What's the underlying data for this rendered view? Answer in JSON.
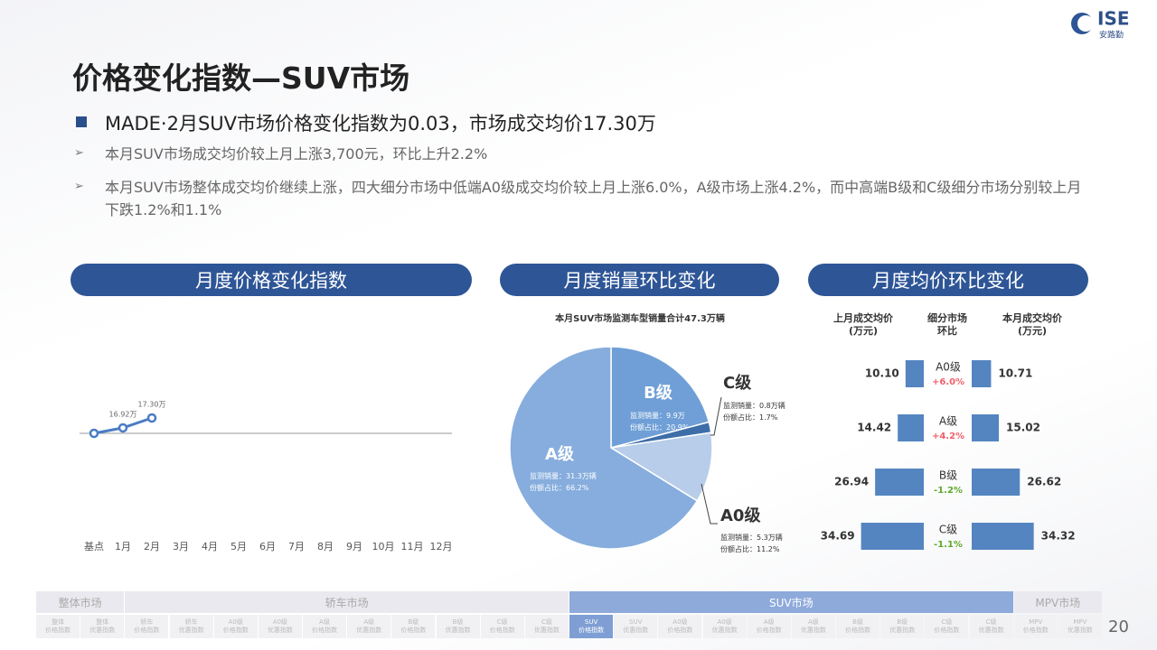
{
  "logo": {
    "brand": "ISE",
    "name": "安路勤"
  },
  "title": "价格变化指数—SUV市场",
  "bullet": "MADE·2月SUV市场价格变化指数为0.03，市场成交均价17.30万",
  "sub_bullets": [
    "本月SUV市场成交均价较上月上涨3,700元，环比上升2.2%",
    "本月SUV市场整体成交均价继续上涨，四大细分市场中低端A0级成交均价较上月上涨6.0%，A级市场上涨4.2%，而中高端B级和C级细分市场分别较上月下跌1.2%和1.1%"
  ],
  "panels": [
    "月度价格变化指数",
    "月度销量环比变化",
    "月度均价环比变化"
  ],
  "chart_data": [
    {
      "type": "line",
      "categories": [
        "基点",
        "1月",
        "2月",
        "3月",
        "4月",
        "5月",
        "6月",
        "7月",
        "8月",
        "9月",
        "10月",
        "11月",
        "12月"
      ],
      "values": [
        16.71,
        16.92,
        17.3,
        null,
        null,
        null,
        null,
        null,
        null,
        null,
        null,
        null,
        null
      ],
      "value_labels": [
        null,
        "16.92万",
        "17.30万",
        null,
        null,
        null,
        null,
        null,
        null,
        null,
        null,
        null,
        null
      ],
      "color": "#4a7cc4"
    },
    {
      "type": "pie",
      "title": "本月SUV市场监测车型销量合计47.3万辆",
      "categories": [
        "B级",
        "C级",
        "A0级",
        "A级"
      ],
      "values": [
        20.9,
        1.7,
        11.2,
        66.2
      ],
      "value_labels": [
        "20.9%",
        "1.7%",
        "11.2%",
        "66.2%"
      ],
      "colors": [
        "#6f9fd6",
        "#3e6ea8",
        "#b8cde9",
        "#86addd"
      ],
      "sales_prefix": "监测销量：",
      "share_prefix": "份额占比：",
      "sales_labels": [
        "9.9万",
        "0.8万辆",
        "5.3万辆",
        "31.3万辆"
      ]
    },
    {
      "type": "butterfly",
      "categories": [
        "A0级",
        "A级",
        "B级",
        "C级"
      ],
      "series": [
        {
          "name": "上月成交均价\n(万元)",
          "color": "#5485c0",
          "values": [
            10.1,
            14.42,
            26.94,
            34.69
          ],
          "value_labels": [
            "10.10",
            "14.42",
            "26.94",
            "34.69"
          ]
        },
        {
          "name": "本月成交均价\n(万元)",
          "color": "#5485c0",
          "values": [
            10.71,
            15.02,
            26.62,
            34.32
          ],
          "value_labels": [
            "10.71",
            "15.02",
            "26.62",
            "34.32"
          ]
        }
      ],
      "change": {
        "name": "细分市场\n环比",
        "values": [
          6.0,
          4.2,
          -1.2,
          -1.1
        ],
        "value_labels": [
          "+6.0%",
          "+4.2%",
          "-1.2%",
          "-1.1%"
        ],
        "up_color": "#f0606a",
        "down_color": "#5fa82a"
      }
    }
  ],
  "nav": [
    {
      "label": "整体市场",
      "items": [
        "整体\n价格指数",
        "整体\n优惠指数"
      ]
    },
    {
      "label": "轿车市场",
      "items": [
        "轿车\n价格指数",
        "轿车\n优惠指数",
        "A0级\n价格指数",
        "A0级\n优惠指数",
        "A级\n价格指数",
        "A级\n优惠指数",
        "B级\n价格指数",
        "B级\n优惠指数",
        "C级\n价格指数",
        "C级\n优惠指数"
      ]
    },
    {
      "label": "SUV市场",
      "active": true,
      "active_item": 0,
      "items": [
        "SUV\n价格指数",
        "SUV\n优惠指数",
        "A0级\n价格指数",
        "A0级\n优惠指数",
        "A级\n价格指数",
        "A级\n优惠指数",
        "B级\n价格指数",
        "B级\n优惠指数",
        "C级\n价格指数",
        "C级\n优惠指数"
      ]
    },
    {
      "label": "MPV市场",
      "items": [
        "MPV\n价格指数",
        "MPV\n优惠指数"
      ]
    }
  ],
  "page_number": "20"
}
